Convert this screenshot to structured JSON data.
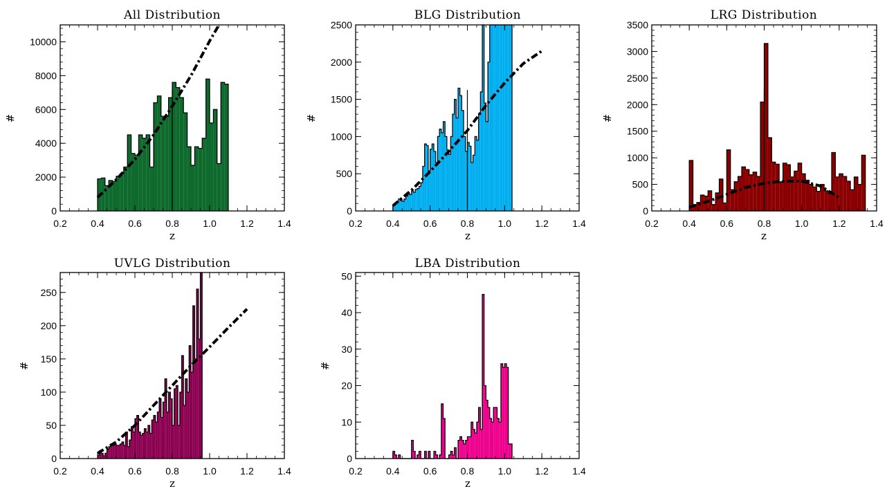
{
  "chart_data": [
    {
      "type": "bar",
      "title": "All Distribution",
      "xlabel": "z",
      "ylabel": "#",
      "xlim": [
        0.2,
        1.4
      ],
      "ylim": [
        0,
        11000
      ],
      "xticks": [
        "0.2",
        "0.4",
        "0.6",
        "0.8",
        "1.0",
        "1.2",
        "1.4"
      ],
      "yticks": [
        "0",
        "2000",
        "4000",
        "6000",
        "8000",
        "10000"
      ],
      "bin_start": 0.4,
      "bin_width": 0.02,
      "values": [
        1900,
        1950,
        1500,
        1800,
        1750,
        2050,
        2200,
        2600,
        4500,
        3400,
        3300,
        4500,
        4300,
        4500,
        2600,
        6400,
        6800,
        5600,
        5600,
        6700,
        7600,
        7300,
        6700,
        5800,
        3800,
        2700,
        3800,
        3700,
        4300,
        7800,
        5200,
        6000,
        2800,
        7600,
        7500
      ],
      "divider_x": 0.8,
      "fit_curve": [
        [
          0.4,
          800
        ],
        [
          0.5,
          1850
        ],
        [
          0.6,
          3050
        ],
        [
          0.7,
          4500
        ],
        [
          0.8,
          6200
        ],
        [
          0.9,
          8000
        ],
        [
          1.0,
          10050
        ],
        [
          1.05,
          11000
        ]
      ],
      "color": "#0f6a2e"
    },
    {
      "type": "bar",
      "title": "BLG Distribution",
      "xlabel": "z",
      "ylabel": "#",
      "xlim": [
        0.2,
        1.4
      ],
      "ylim": [
        0,
        2500
      ],
      "xticks": [
        "0.2",
        "0.4",
        "0.6",
        "0.8",
        "1.0",
        "1.2",
        "1.4"
      ],
      "yticks": [
        "0",
        "500",
        "1000",
        "1500",
        "2000",
        "2500"
      ],
      "bin_start": 0.4,
      "bin_width": 0.01,
      "values": [
        80,
        100,
        120,
        160,
        140,
        130,
        160,
        200,
        230,
        220,
        270,
        250,
        290,
        300,
        330,
        380,
        600,
        900,
        880,
        540,
        830,
        900,
        800,
        650,
        1000,
        1100,
        1050,
        1200,
        1000,
        820,
        760,
        1000,
        1300,
        1500,
        1250,
        1650,
        1550,
        1350,
        1000,
        800,
        920,
        870,
        650,
        750,
        1000,
        950,
        1300,
        1600,
        2500,
        1450,
        1200,
        2000,
        2500,
        2500,
        2500,
        2500,
        2500,
        2500,
        2500,
        2500,
        2500,
        2500,
        2500,
        2500
      ],
      "divider_x": 0.8,
      "fit_curve": [
        [
          0.4,
          70
        ],
        [
          0.5,
          280
        ],
        [
          0.6,
          530
        ],
        [
          0.7,
          800
        ],
        [
          0.8,
          1080
        ],
        [
          0.9,
          1420
        ],
        [
          1.0,
          1720
        ],
        [
          1.1,
          1980
        ],
        [
          1.2,
          2150
        ]
      ],
      "color": "#00aeef"
    },
    {
      "type": "bar",
      "title": "LRG Distribution",
      "xlabel": "z",
      "ylabel": "#",
      "xlim": [
        0.2,
        1.4
      ],
      "ylim": [
        0,
        3500
      ],
      "xticks": [
        "0.2",
        "0.4",
        "0.6",
        "0.8",
        "1.0",
        "1.2",
        "1.4"
      ],
      "yticks": [
        "0",
        "500",
        "1000",
        "1500",
        "2000",
        "2500",
        "3000",
        "3500"
      ],
      "bin_start": 0.4,
      "bin_width": 0.02,
      "values": [
        950,
        120,
        160,
        300,
        280,
        380,
        120,
        340,
        600,
        150,
        1150,
        400,
        550,
        650,
        830,
        780,
        680,
        730,
        650,
        2050,
        3150,
        1380,
        920,
        880,
        550,
        900,
        870,
        640,
        750,
        900,
        700,
        580,
        500,
        450,
        370,
        500,
        380,
        330,
        1100,
        640,
        700,
        650,
        560,
        400,
        640,
        500,
        1050
      ],
      "divider_x": 0.8,
      "fit_curve": [
        [
          0.4,
          70
        ],
        [
          0.5,
          180
        ],
        [
          0.6,
          310
        ],
        [
          0.7,
          440
        ],
        [
          0.8,
          520
        ],
        [
          0.9,
          560
        ],
        [
          1.0,
          560
        ],
        [
          1.1,
          470
        ],
        [
          1.2,
          250
        ]
      ],
      "color": "#8b0000"
    },
    {
      "type": "bar",
      "title": "UVLG Distribution",
      "xlabel": "z",
      "ylabel": "#",
      "xlim": [
        0.2,
        1.4
      ],
      "ylim": [
        0,
        280
      ],
      "xticks": [
        "0.2",
        "0.4",
        "0.6",
        "0.8",
        "1.0",
        "1.2",
        "1.4"
      ],
      "yticks": [
        "0",
        "50",
        "100",
        "150",
        "200",
        "250"
      ],
      "bin_start": 0.4,
      "bin_width": 0.01,
      "values": [
        5,
        12,
        8,
        4,
        8,
        14,
        18,
        22,
        20,
        22,
        20,
        20,
        22,
        25,
        20,
        40,
        18,
        28,
        48,
        40,
        60,
        65,
        40,
        35,
        38,
        45,
        40,
        50,
        38,
        58,
        65,
        55,
        70,
        90,
        62,
        85,
        120,
        70,
        100,
        90,
        50,
        105,
        110,
        50,
        100,
        155,
        80,
        120,
        100,
        170,
        130,
        230,
        150,
        255,
        180,
        280
      ],
      "fit_curve": [
        [
          0.4,
          8
        ],
        [
          0.5,
          25
        ],
        [
          0.6,
          50
        ],
        [
          0.7,
          80
        ],
        [
          0.8,
          110
        ],
        [
          0.9,
          140
        ],
        [
          1.0,
          168
        ],
        [
          1.1,
          197
        ],
        [
          1.2,
          225
        ]
      ],
      "color": "#8b0050"
    },
    {
      "type": "bar",
      "title": "LBA Distribution",
      "xlabel": "z",
      "ylabel": "#",
      "xlim": [
        0.2,
        1.4
      ],
      "ylim": [
        0,
        51
      ],
      "xticks": [
        "0.2",
        "0.4",
        "0.6",
        "0.8",
        "1.0",
        "1.2",
        "1.4"
      ],
      "yticks": [
        "0",
        "10",
        "20",
        "30",
        "40",
        "50"
      ],
      "bin_start": 0.4,
      "bin_width": 0.01,
      "values": [
        2,
        1,
        0,
        1,
        0,
        0,
        0,
        0,
        0,
        0,
        5,
        2,
        0,
        1,
        2,
        0,
        0,
        2,
        0,
        2,
        0,
        0,
        2,
        1,
        0,
        1,
        15,
        11,
        0,
        0,
        1,
        2,
        1,
        3,
        0,
        5,
        6,
        5,
        4,
        5,
        6,
        6,
        10,
        8,
        7,
        10,
        14,
        8,
        45,
        20,
        16,
        14,
        11,
        10,
        14,
        14,
        11,
        10,
        26,
        25,
        26,
        25,
        4,
        4
      ],
      "color": "#ec008c"
    }
  ]
}
